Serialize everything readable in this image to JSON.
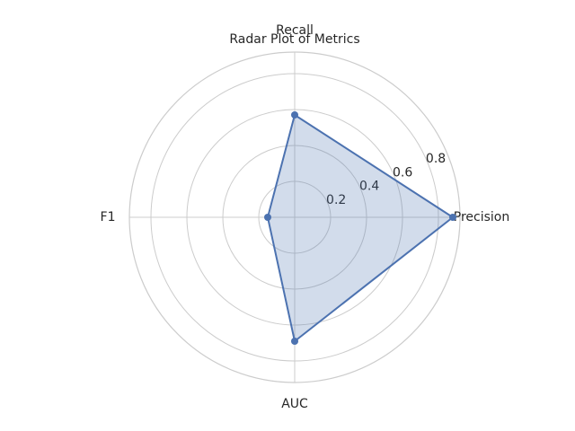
{
  "chart_data": {
    "type": "radar",
    "title": "Radar Plot of Metrics",
    "categories": [
      "Precision",
      "Recall",
      "F1",
      "AUC"
    ],
    "values": [
      0.88,
      0.57,
      0.15,
      0.69
    ],
    "color": "#4c72b0",
    "ylim": [
      0,
      0.92
    ],
    "yticks": [
      0.2,
      0.4,
      0.6,
      0.8
    ],
    "grid": true
  }
}
